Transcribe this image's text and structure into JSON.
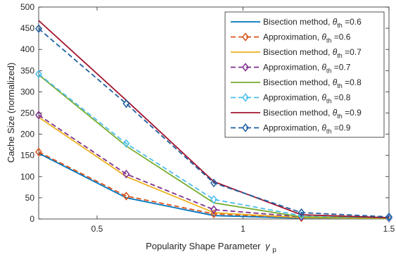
{
  "chart_data": {
    "type": "line",
    "title": "",
    "xlabel": "Popularity Shape Parameter",
    "xlabel_symbol": "γ",
    "xlabel_subscript": "p",
    "ylabel": "Cache Size (normalized)",
    "xlim": [
      0.3,
      1.5
    ],
    "ylim": [
      0,
      500
    ],
    "xticks": [
      0.5,
      1,
      1.5
    ],
    "xtick_labels": [
      "0.5",
      "1",
      "1.5"
    ],
    "yticks": [
      0,
      50,
      100,
      150,
      200,
      250,
      300,
      350,
      400,
      450,
      500
    ],
    "ytick_labels": [
      "0",
      "50",
      "100",
      "150",
      "200",
      "250",
      "300",
      "350",
      "400",
      "450",
      "500"
    ],
    "grid": false,
    "legend_position": "top-right",
    "x": [
      0.3,
      0.6,
      0.9,
      1.2,
      1.5
    ],
    "series": [
      {
        "name": "Bisection method, ",
        "theta": "0.6",
        "style": "solid",
        "marker": "none",
        "color": "#0072BD",
        "values": [
          155,
          50,
          8,
          2,
          1
        ]
      },
      {
        "name": "Approximation, ",
        "theta": "0.6",
        "style": "dashed",
        "marker": "diamond",
        "color": "#D95319",
        "values": [
          158,
          54,
          12,
          3,
          2
        ]
      },
      {
        "name": "Bisection method, ",
        "theta": "0.7",
        "style": "solid",
        "marker": "none",
        "color": "#EDB120",
        "values": [
          240,
          100,
          15,
          3,
          1
        ]
      },
      {
        "name": "Approximation, ",
        "theta": "0.7",
        "style": "dashed",
        "marker": "diamond",
        "color": "#7E2F8E",
        "values": [
          245,
          106,
          22,
          5,
          2
        ]
      },
      {
        "name": "Bisection method, ",
        "theta": "0.8",
        "style": "solid",
        "marker": "none",
        "color": "#77AC30",
        "values": [
          340,
          172,
          38,
          5,
          2
        ]
      },
      {
        "name": "Approximation, ",
        "theta": "0.8",
        "style": "dashed",
        "marker": "diamond",
        "color": "#4DBEEE",
        "values": [
          342,
          178,
          46,
          8,
          3
        ]
      },
      {
        "name": "Bisection method, ",
        "theta": "0.9",
        "style": "solid",
        "marker": "none",
        "color": "#A2142F",
        "values": [
          468,
          280,
          88,
          10,
          3
        ]
      },
      {
        "name": "Approximation, ",
        "theta": "0.9",
        "style": "dashed",
        "marker": "diamond",
        "color": "#1F5FA0",
        "values": [
          449,
          272,
          85,
          15,
          5
        ]
      }
    ],
    "legend_theta_symbol": "θ",
    "legend_theta_sub": "th",
    "legend_eq": " ="
  }
}
